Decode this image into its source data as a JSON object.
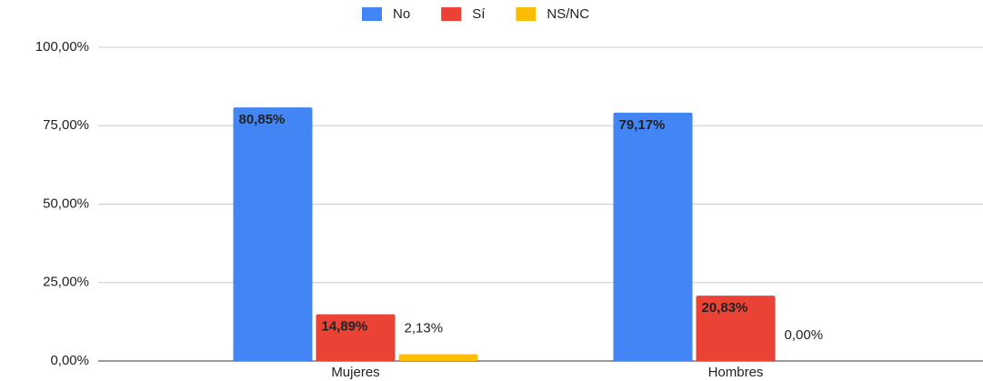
{
  "chart_data": {
    "type": "bar",
    "categories": [
      "Mujeres",
      "Hombres"
    ],
    "series": [
      {
        "name": "No",
        "color": "#4285f4",
        "values": [
          80.85,
          79.17
        ],
        "value_labels": [
          "80,85%",
          "79,17%"
        ]
      },
      {
        "name": "Sí",
        "color": "#ea4335",
        "values": [
          14.89,
          20.83
        ],
        "value_labels": [
          "14,89%",
          "20,83%"
        ]
      },
      {
        "name": "NS/NC",
        "color": "#fbbc04",
        "values": [
          2.13,
          0
        ],
        "value_labels": [
          "2,13%",
          "0,00%"
        ]
      }
    ],
    "ylim": [
      0,
      100
    ],
    "yticks": [
      {
        "value": 0,
        "label": "0,00%"
      },
      {
        "value": 25,
        "label": "25,00%"
      },
      {
        "value": 50,
        "label": "50,00%"
      },
      {
        "value": 75,
        "label": "75,00%"
      },
      {
        "value": 100,
        "label": "100,00%"
      }
    ],
    "grid": true,
    "legend": "top"
  }
}
